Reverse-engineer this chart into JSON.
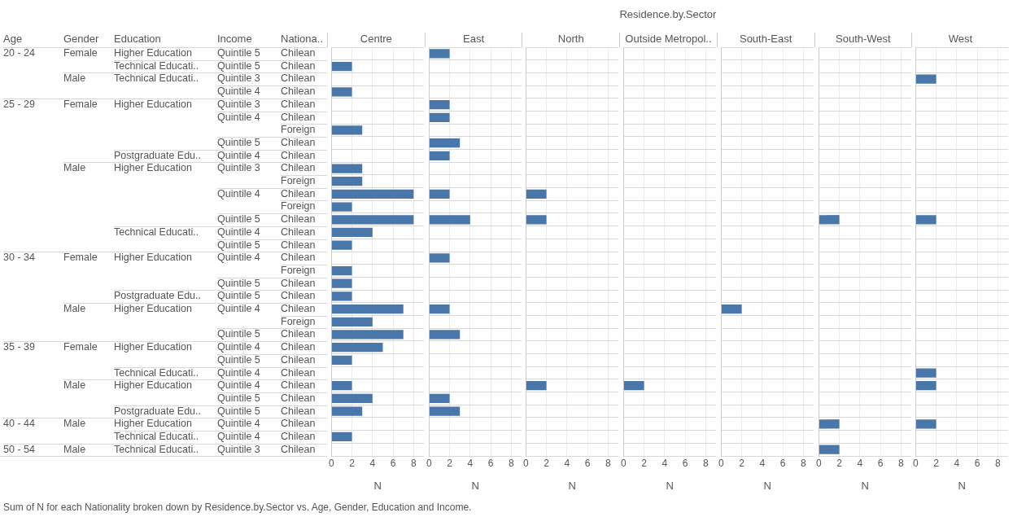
{
  "chart_data": [
    {
      "type": "other",
      "title": "Residence.by.Sector",
      "categories": [
        "Age",
        "Gender",
        "Education",
        "Income",
        "Nationa.."
      ],
      "cell_labels": [
        [
          "20 - 24",
          "Female",
          "Higher Education",
          "Quintile 5",
          "Chilean"
        ],
        [
          null,
          null,
          "Technical Educati..",
          "Quintile 5",
          "Chilean"
        ],
        [
          null,
          "Male",
          "Technical Educati..",
          "Quintile 3",
          "Chilean"
        ],
        [
          null,
          null,
          null,
          "Quintile 4",
          "Chilean"
        ],
        [
          "25 - 29",
          "Female",
          "Higher Education",
          "Quintile 3",
          "Chilean"
        ],
        [
          null,
          null,
          null,
          "Quintile 4",
          "Chilean"
        ],
        [
          null,
          null,
          null,
          null,
          "Foreign"
        ],
        [
          null,
          null,
          null,
          "Quintile 5",
          "Chilean"
        ],
        [
          null,
          null,
          "Postgraduate Edu..",
          "Quintile 4",
          "Chilean"
        ],
        [
          null,
          "Male",
          "Higher Education",
          "Quintile 3",
          "Chilean"
        ],
        [
          null,
          null,
          null,
          null,
          "Foreign"
        ],
        [
          null,
          null,
          null,
          "Quintile 4",
          "Chilean"
        ],
        [
          null,
          null,
          null,
          null,
          "Foreign"
        ],
        [
          null,
          null,
          null,
          "Quintile 5",
          "Chilean"
        ],
        [
          null,
          null,
          "Technical Educati..",
          "Quintile 4",
          "Chilean"
        ],
        [
          null,
          null,
          null,
          "Quintile 5",
          "Chilean"
        ],
        [
          "30 - 34",
          "Female",
          "Higher Education",
          "Quintile 4",
          "Chilean"
        ],
        [
          null,
          null,
          null,
          null,
          "Foreign"
        ],
        [
          null,
          null,
          null,
          "Quintile 5",
          "Chilean"
        ],
        [
          null,
          null,
          "Postgraduate Edu..",
          "Quintile 5",
          "Chilean"
        ],
        [
          null,
          "Male",
          "Higher Education",
          "Quintile 4",
          "Chilean"
        ],
        [
          null,
          null,
          null,
          null,
          "Foreign"
        ],
        [
          null,
          null,
          null,
          "Quintile 5",
          "Chilean"
        ],
        [
          "35 - 39",
          "Female",
          "Higher Education",
          "Quintile 4",
          "Chilean"
        ],
        [
          null,
          null,
          null,
          "Quintile 5",
          "Chilean"
        ],
        [
          null,
          null,
          "Technical Educati..",
          "Quintile 4",
          "Chilean"
        ],
        [
          null,
          "Male",
          "Higher Education",
          "Quintile 4",
          "Chilean"
        ],
        [
          null,
          null,
          null,
          "Quintile 5",
          "Chilean"
        ],
        [
          null,
          null,
          "Postgraduate Edu..",
          "Quintile 5",
          "Chilean"
        ],
        [
          "40 - 44",
          "Male",
          "Higher Education",
          "Quintile 4",
          "Chilean"
        ],
        [
          null,
          null,
          "Technical Educati..",
          "Quintile 4",
          "Chilean"
        ],
        [
          "50 - 54",
          "Male",
          "Technical Educati..",
          "Quintile 3",
          "Chilean"
        ]
      ],
      "annotations": [
        "Sum of N for each Nationality broken down by Residence.by.Sector vs. Age, Gender, Education and Income."
      ]
    },
    {
      "type": "bar",
      "orientation": "horizontal",
      "title": "Centre",
      "xlabel": "N",
      "color": "#4a77aa",
      "xlim": [
        0,
        9
      ],
      "xticks": [
        0,
        2,
        4,
        6,
        8
      ],
      "grid": true,
      "tick_labels": "x",
      "categories": [
        null,
        null,
        null,
        null,
        null,
        null,
        null,
        null,
        null,
        null,
        null,
        null,
        null,
        null,
        null,
        null,
        null,
        null,
        null,
        null,
        null,
        null,
        null,
        null,
        null,
        null,
        null,
        null,
        null,
        null,
        null,
        null
      ],
      "values": [
        null,
        2,
        null,
        2,
        null,
        null,
        3,
        null,
        null,
        3,
        3,
        8,
        2,
        8,
        4,
        2,
        null,
        2,
        2,
        2,
        7,
        4,
        7,
        5,
        2,
        null,
        2,
        4,
        3,
        null,
        2,
        null
      ]
    },
    {
      "type": "bar",
      "orientation": "horizontal",
      "title": "East",
      "xlabel": "N",
      "color": "#4a77aa",
      "xlim": [
        0,
        9
      ],
      "xticks": [
        0,
        2,
        4,
        6,
        8
      ],
      "grid": true,
      "tick_labels": "x",
      "categories": [
        null,
        null,
        null,
        null,
        null,
        null,
        null,
        null,
        null,
        null,
        null,
        null,
        null,
        null,
        null,
        null,
        null,
        null,
        null,
        null,
        null,
        null,
        null,
        null,
        null,
        null,
        null,
        null,
        null,
        null,
        null,
        null
      ],
      "values": [
        2,
        null,
        null,
        null,
        2,
        2,
        null,
        3,
        2,
        null,
        null,
        2,
        null,
        4,
        null,
        null,
        2,
        null,
        null,
        null,
        2,
        null,
        3,
        null,
        null,
        null,
        null,
        2,
        3,
        null,
        null,
        null
      ]
    },
    {
      "type": "bar",
      "orientation": "horizontal",
      "title": "North",
      "xlabel": "N",
      "color": "#4a77aa",
      "xlim": [
        0,
        9
      ],
      "xticks": [
        0,
        2,
        4,
        6,
        8
      ],
      "grid": true,
      "tick_labels": "x",
      "categories": [
        null,
        null,
        null,
        null,
        null,
        null,
        null,
        null,
        null,
        null,
        null,
        null,
        null,
        null,
        null,
        null,
        null,
        null,
        null,
        null,
        null,
        null,
        null,
        null,
        null,
        null,
        null,
        null,
        null,
        null,
        null,
        null
      ],
      "values": [
        null,
        null,
        null,
        null,
        null,
        null,
        null,
        null,
        null,
        null,
        null,
        2,
        null,
        2,
        null,
        null,
        null,
        null,
        null,
        null,
        null,
        null,
        null,
        null,
        null,
        null,
        2,
        null,
        null,
        null,
        null,
        null
      ]
    },
    {
      "type": "bar",
      "orientation": "horizontal",
      "title": "Outside Metropol..",
      "xlabel": "N",
      "color": "#4a77aa",
      "xlim": [
        0,
        9
      ],
      "xticks": [
        0,
        2,
        4,
        6,
        8
      ],
      "grid": true,
      "tick_labels": "x",
      "categories": [
        null,
        null,
        null,
        null,
        null,
        null,
        null,
        null,
        null,
        null,
        null,
        null,
        null,
        null,
        null,
        null,
        null,
        null,
        null,
        null,
        null,
        null,
        null,
        null,
        null,
        null,
        null,
        null,
        null,
        null,
        null,
        null
      ],
      "values": [
        null,
        null,
        null,
        null,
        null,
        null,
        null,
        null,
        null,
        null,
        null,
        null,
        null,
        null,
        null,
        null,
        null,
        null,
        null,
        null,
        null,
        null,
        null,
        null,
        null,
        null,
        2,
        null,
        null,
        null,
        null,
        null
      ]
    },
    {
      "type": "bar",
      "orientation": "horizontal",
      "title": "South-East",
      "xlabel": "N",
      "color": "#4a77aa",
      "xlim": [
        0,
        9
      ],
      "xticks": [
        0,
        2,
        4,
        6,
        8
      ],
      "grid": true,
      "tick_labels": "x",
      "categories": [
        null,
        null,
        null,
        null,
        null,
        null,
        null,
        null,
        null,
        null,
        null,
        null,
        null,
        null,
        null,
        null,
        null,
        null,
        null,
        null,
        null,
        null,
        null,
        null,
        null,
        null,
        null,
        null,
        null,
        null,
        null,
        null
      ],
      "values": [
        null,
        null,
        null,
        null,
        null,
        null,
        null,
        null,
        null,
        null,
        null,
        null,
        null,
        null,
        null,
        null,
        null,
        null,
        null,
        null,
        2,
        null,
        null,
        null,
        null,
        null,
        null,
        null,
        null,
        null,
        null,
        null
      ]
    },
    {
      "type": "bar",
      "orientation": "horizontal",
      "title": "South-West",
      "xlabel": "N",
      "color": "#4a77aa",
      "xlim": [
        0,
        9
      ],
      "xticks": [
        0,
        2,
        4,
        6,
        8
      ],
      "grid": true,
      "tick_labels": "x",
      "categories": [
        null,
        null,
        null,
        null,
        null,
        null,
        null,
        null,
        null,
        null,
        null,
        null,
        null,
        null,
        null,
        null,
        null,
        null,
        null,
        null,
        null,
        null,
        null,
        null,
        null,
        null,
        null,
        null,
        null,
        null,
        null,
        null
      ],
      "values": [
        null,
        null,
        null,
        null,
        null,
        null,
        null,
        null,
        null,
        null,
        null,
        null,
        null,
        2,
        null,
        null,
        null,
        null,
        null,
        null,
        null,
        null,
        null,
        null,
        null,
        null,
        null,
        null,
        null,
        2,
        null,
        2
      ]
    },
    {
      "type": "bar",
      "orientation": "horizontal",
      "title": "West",
      "xlabel": "N",
      "color": "#4a77aa",
      "xlim": [
        0,
        9
      ],
      "xticks": [
        0,
        2,
        4,
        6,
        8
      ],
      "grid": true,
      "tick_labels": "x",
      "categories": [
        null,
        null,
        null,
        null,
        null,
        null,
        null,
        null,
        null,
        null,
        null,
        null,
        null,
        null,
        null,
        null,
        null,
        null,
        null,
        null,
        null,
        null,
        null,
        null,
        null,
        null,
        null,
        null,
        null,
        null,
        null,
        null
      ],
      "values": [
        null,
        null,
        2,
        null,
        null,
        null,
        null,
        null,
        null,
        null,
        null,
        null,
        null,
        2,
        null,
        null,
        null,
        null,
        null,
        null,
        null,
        null,
        null,
        null,
        null,
        2,
        2,
        null,
        null,
        2,
        null,
        null
      ]
    }
  ]
}
